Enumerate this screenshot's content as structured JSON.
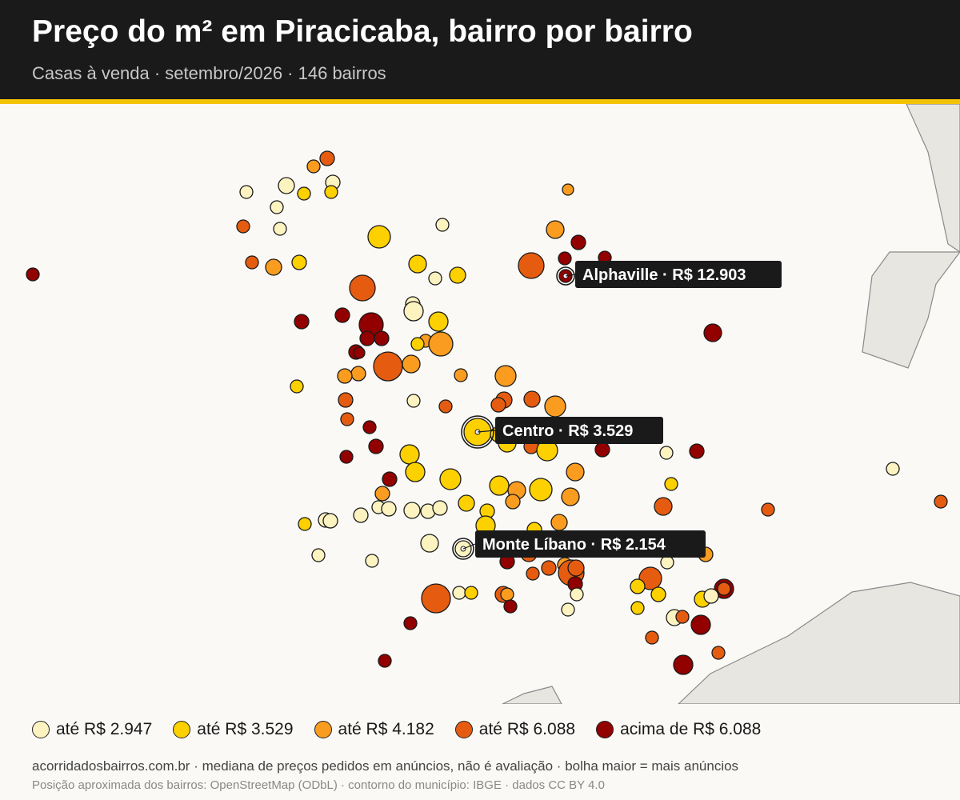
{
  "header": {
    "title": "Preço do m² em Piracicaba, bairro por bairro",
    "subtitle": "Casas à venda · setembro/2026 · 146 bairros"
  },
  "colors": {
    "header_bg": "#1a1a1a",
    "accent": "#f4c300",
    "map_bg": "#faf9f6",
    "outside_municipality": "#e8e6e0",
    "class_1": "#fdf3c0",
    "class_2": "#fdd000",
    "class_3": "#f99c20",
    "class_4": "#e55c10",
    "class_5": "#920000"
  },
  "legend": [
    {
      "label": "até R$ 2.947",
      "class": 1
    },
    {
      "label": "até R$ 3.529",
      "class": 2
    },
    {
      "label": "até R$ 4.182",
      "class": 3
    },
    {
      "label": "até R$ 6.088",
      "class": 4
    },
    {
      "label": "acima de R$ 6.088",
      "class": 5
    }
  ],
  "callouts": [
    {
      "text": "Alphaville · R$ 12.903",
      "class": 5
    },
    {
      "text": "Centro · R$ 3.529",
      "class": 2
    },
    {
      "text": "Monte Líbano · R$ 2.154",
      "class": 1
    }
  ],
  "footer": {
    "line1": "acorridadosbairros.com.br · mediana de preços pedidos em anúncios, não é avaliação · bolha maior = mais anúncios",
    "line2": "Posição aproximada dos bairros: OpenStreetMap (ODbL) · contorno do município: IBGE · dados CC BY 4.0"
  }
}
